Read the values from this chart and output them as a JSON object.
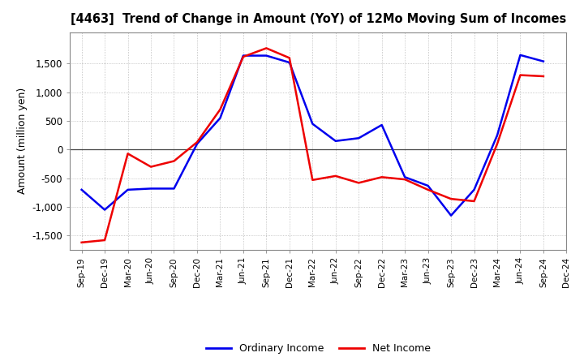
{
  "title": "[4463]  Trend of Change in Amount (YoY) of 12Mo Moving Sum of Incomes",
  "ylabel": "Amount (million yen)",
  "x_labels": [
    "Sep-19",
    "Dec-19",
    "Mar-20",
    "Jun-20",
    "Sep-20",
    "Dec-20",
    "Mar-21",
    "Jun-21",
    "Sep-21",
    "Dec-21",
    "Mar-22",
    "Jun-22",
    "Sep-22",
    "Dec-22",
    "Mar-23",
    "Jun-23",
    "Sep-23",
    "Dec-23",
    "Mar-24",
    "Jun-24",
    "Sep-24",
    "Dec-24"
  ],
  "ordinary_income": [
    -700,
    -1050,
    -700,
    -680,
    -680,
    100,
    550,
    1640,
    1640,
    1520,
    450,
    150,
    200,
    430,
    -480,
    -630,
    -1150,
    -700,
    250,
    1650,
    1540,
    null
  ],
  "net_income": [
    -1620,
    -1580,
    -70,
    -300,
    -200,
    130,
    700,
    1620,
    1770,
    1600,
    -530,
    -460,
    -580,
    -480,
    -520,
    -700,
    -860,
    -900,
    100,
    1300,
    1280,
    null
  ],
  "ordinary_color": "#0000ee",
  "net_color": "#ee0000",
  "background_color": "#ffffff",
  "grid_color": "#999999",
  "ylim": [
    -1750,
    2050
  ],
  "yticks": [
    -1500,
    -1000,
    -500,
    0,
    500,
    1000,
    1500
  ],
  "legend_labels": [
    "Ordinary Income",
    "Net Income"
  ]
}
